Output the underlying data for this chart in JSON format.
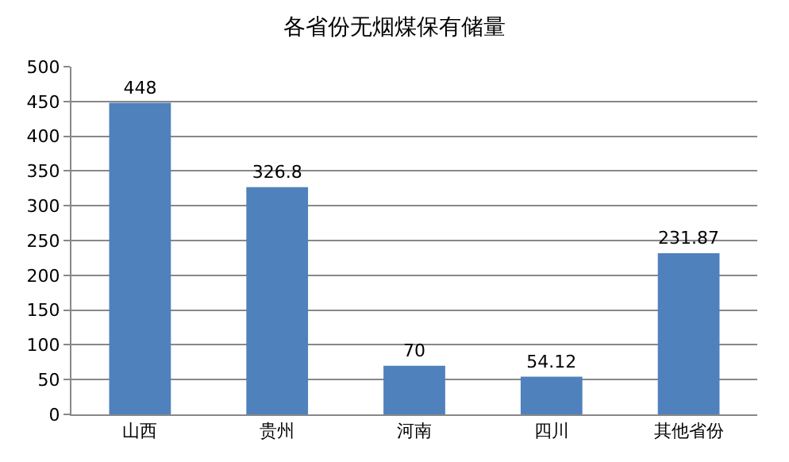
{
  "chart_data": {
    "type": "bar",
    "title": "各省份无烟煤保有储量",
    "categories": [
      "山西",
      "贵州",
      "河南",
      "四川",
      "其他省份"
    ],
    "values": [
      448,
      326.8,
      70,
      54.12,
      231.87
    ],
    "color": "#4f81bd",
    "ylim": [
      0,
      500
    ],
    "yticks": [
      0,
      50,
      100,
      150,
      200,
      250,
      300,
      350,
      400,
      450,
      500
    ],
    "grid": "y",
    "data_labels": true
  }
}
